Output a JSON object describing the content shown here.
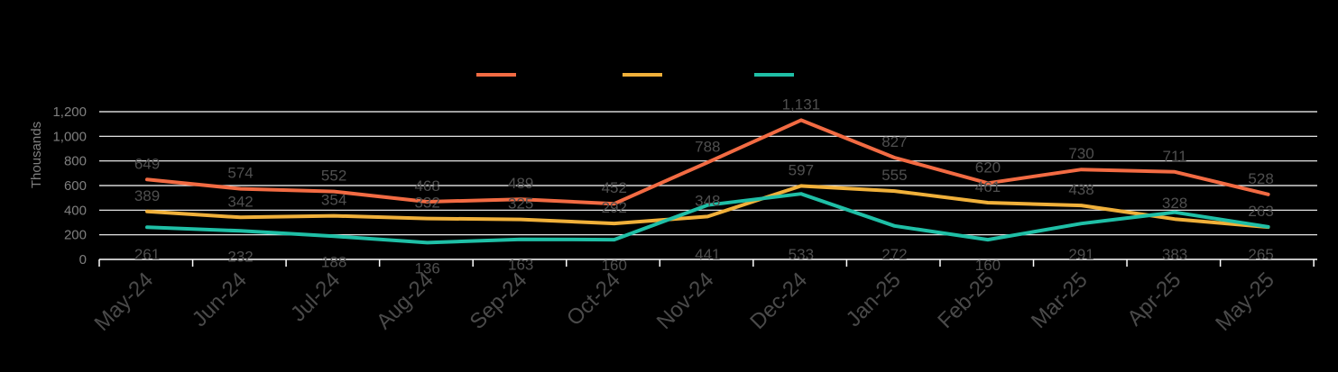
{
  "chart_data": {
    "type": "line",
    "title": "",
    "xlabel": "",
    "ylabel": "Thousands",
    "ylim": [
      0,
      1200
    ],
    "yticks": [
      "0",
      "200",
      "400",
      "600",
      "800",
      "1,000",
      "1,200"
    ],
    "grid": true,
    "legend_position": "top-center",
    "categories": [
      "May-24",
      "Jun-24",
      "Jul-24",
      "Aug-24",
      "Sep-24",
      "Oct-24",
      "Nov-24",
      "Dec-24",
      "Jan-25",
      "Feb-25",
      "Mar-25",
      "Apr-25",
      "May-25"
    ],
    "series": [
      {
        "color": "#f26b43",
        "values": [
          649,
          574,
          552,
          468,
          489,
          452,
          788,
          1131,
          827,
          620,
          730,
          711,
          528
        ],
        "labels": [
          "649",
          "574",
          "552",
          "468",
          "489",
          "452",
          "788",
          "1,131",
          "827",
          "620",
          "730",
          "711",
          "528"
        ]
      },
      {
        "color": "#f0b03a",
        "values": [
          389,
          342,
          354,
          332,
          325,
          292,
          348,
          597,
          555,
          461,
          438,
          328,
          263
        ],
        "labels": [
          "389",
          "342",
          "354",
          "332",
          "325",
          "292",
          "348",
          "597",
          "555",
          "461",
          "438",
          "328",
          "263"
        ]
      },
      {
        "color": "#1fbfa6",
        "values": [
          261,
          232,
          188,
          136,
          163,
          160,
          441,
          533,
          272,
          160,
          291,
          383,
          265
        ],
        "labels": [
          "261",
          "232",
          "188",
          "136",
          "163",
          "160",
          "441",
          "533",
          "272",
          "160",
          "291",
          "383",
          "265"
        ]
      }
    ]
  }
}
